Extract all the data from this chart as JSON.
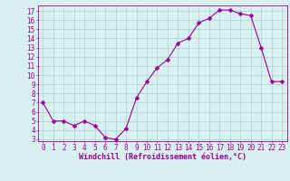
{
  "x": [
    0,
    1,
    2,
    3,
    4,
    5,
    6,
    7,
    8,
    9,
    10,
    11,
    12,
    13,
    14,
    15,
    16,
    17,
    18,
    19,
    20,
    21,
    22,
    23
  ],
  "y": [
    7,
    5,
    5,
    4.5,
    5,
    4.5,
    3.2,
    3,
    4.2,
    7.5,
    9.3,
    10.8,
    11.7,
    13.5,
    14,
    15.7,
    16.2,
    17.1,
    17.1,
    16.7,
    16.5,
    13,
    9.3,
    9.3
  ],
  "line_color": "#990099",
  "marker": "D",
  "marker_size": 2.5,
  "bg_color": "#d8f0f0",
  "grid_color": "#b0d8d8",
  "xlabel": "Windchill (Refroidissement éolien,°C)",
  "xlabel_fontsize": 6,
  "tick_fontsize": 5.5,
  "ylim": [
    2.8,
    17.6
  ],
  "xlim": [
    -0.5,
    23.5
  ],
  "yticks": [
    3,
    4,
    5,
    6,
    7,
    8,
    9,
    10,
    11,
    12,
    13,
    14,
    15,
    16,
    17
  ],
  "xticks": [
    0,
    1,
    2,
    3,
    4,
    5,
    6,
    7,
    8,
    9,
    10,
    11,
    12,
    13,
    14,
    15,
    16,
    17,
    18,
    19,
    20,
    21,
    22,
    23
  ]
}
